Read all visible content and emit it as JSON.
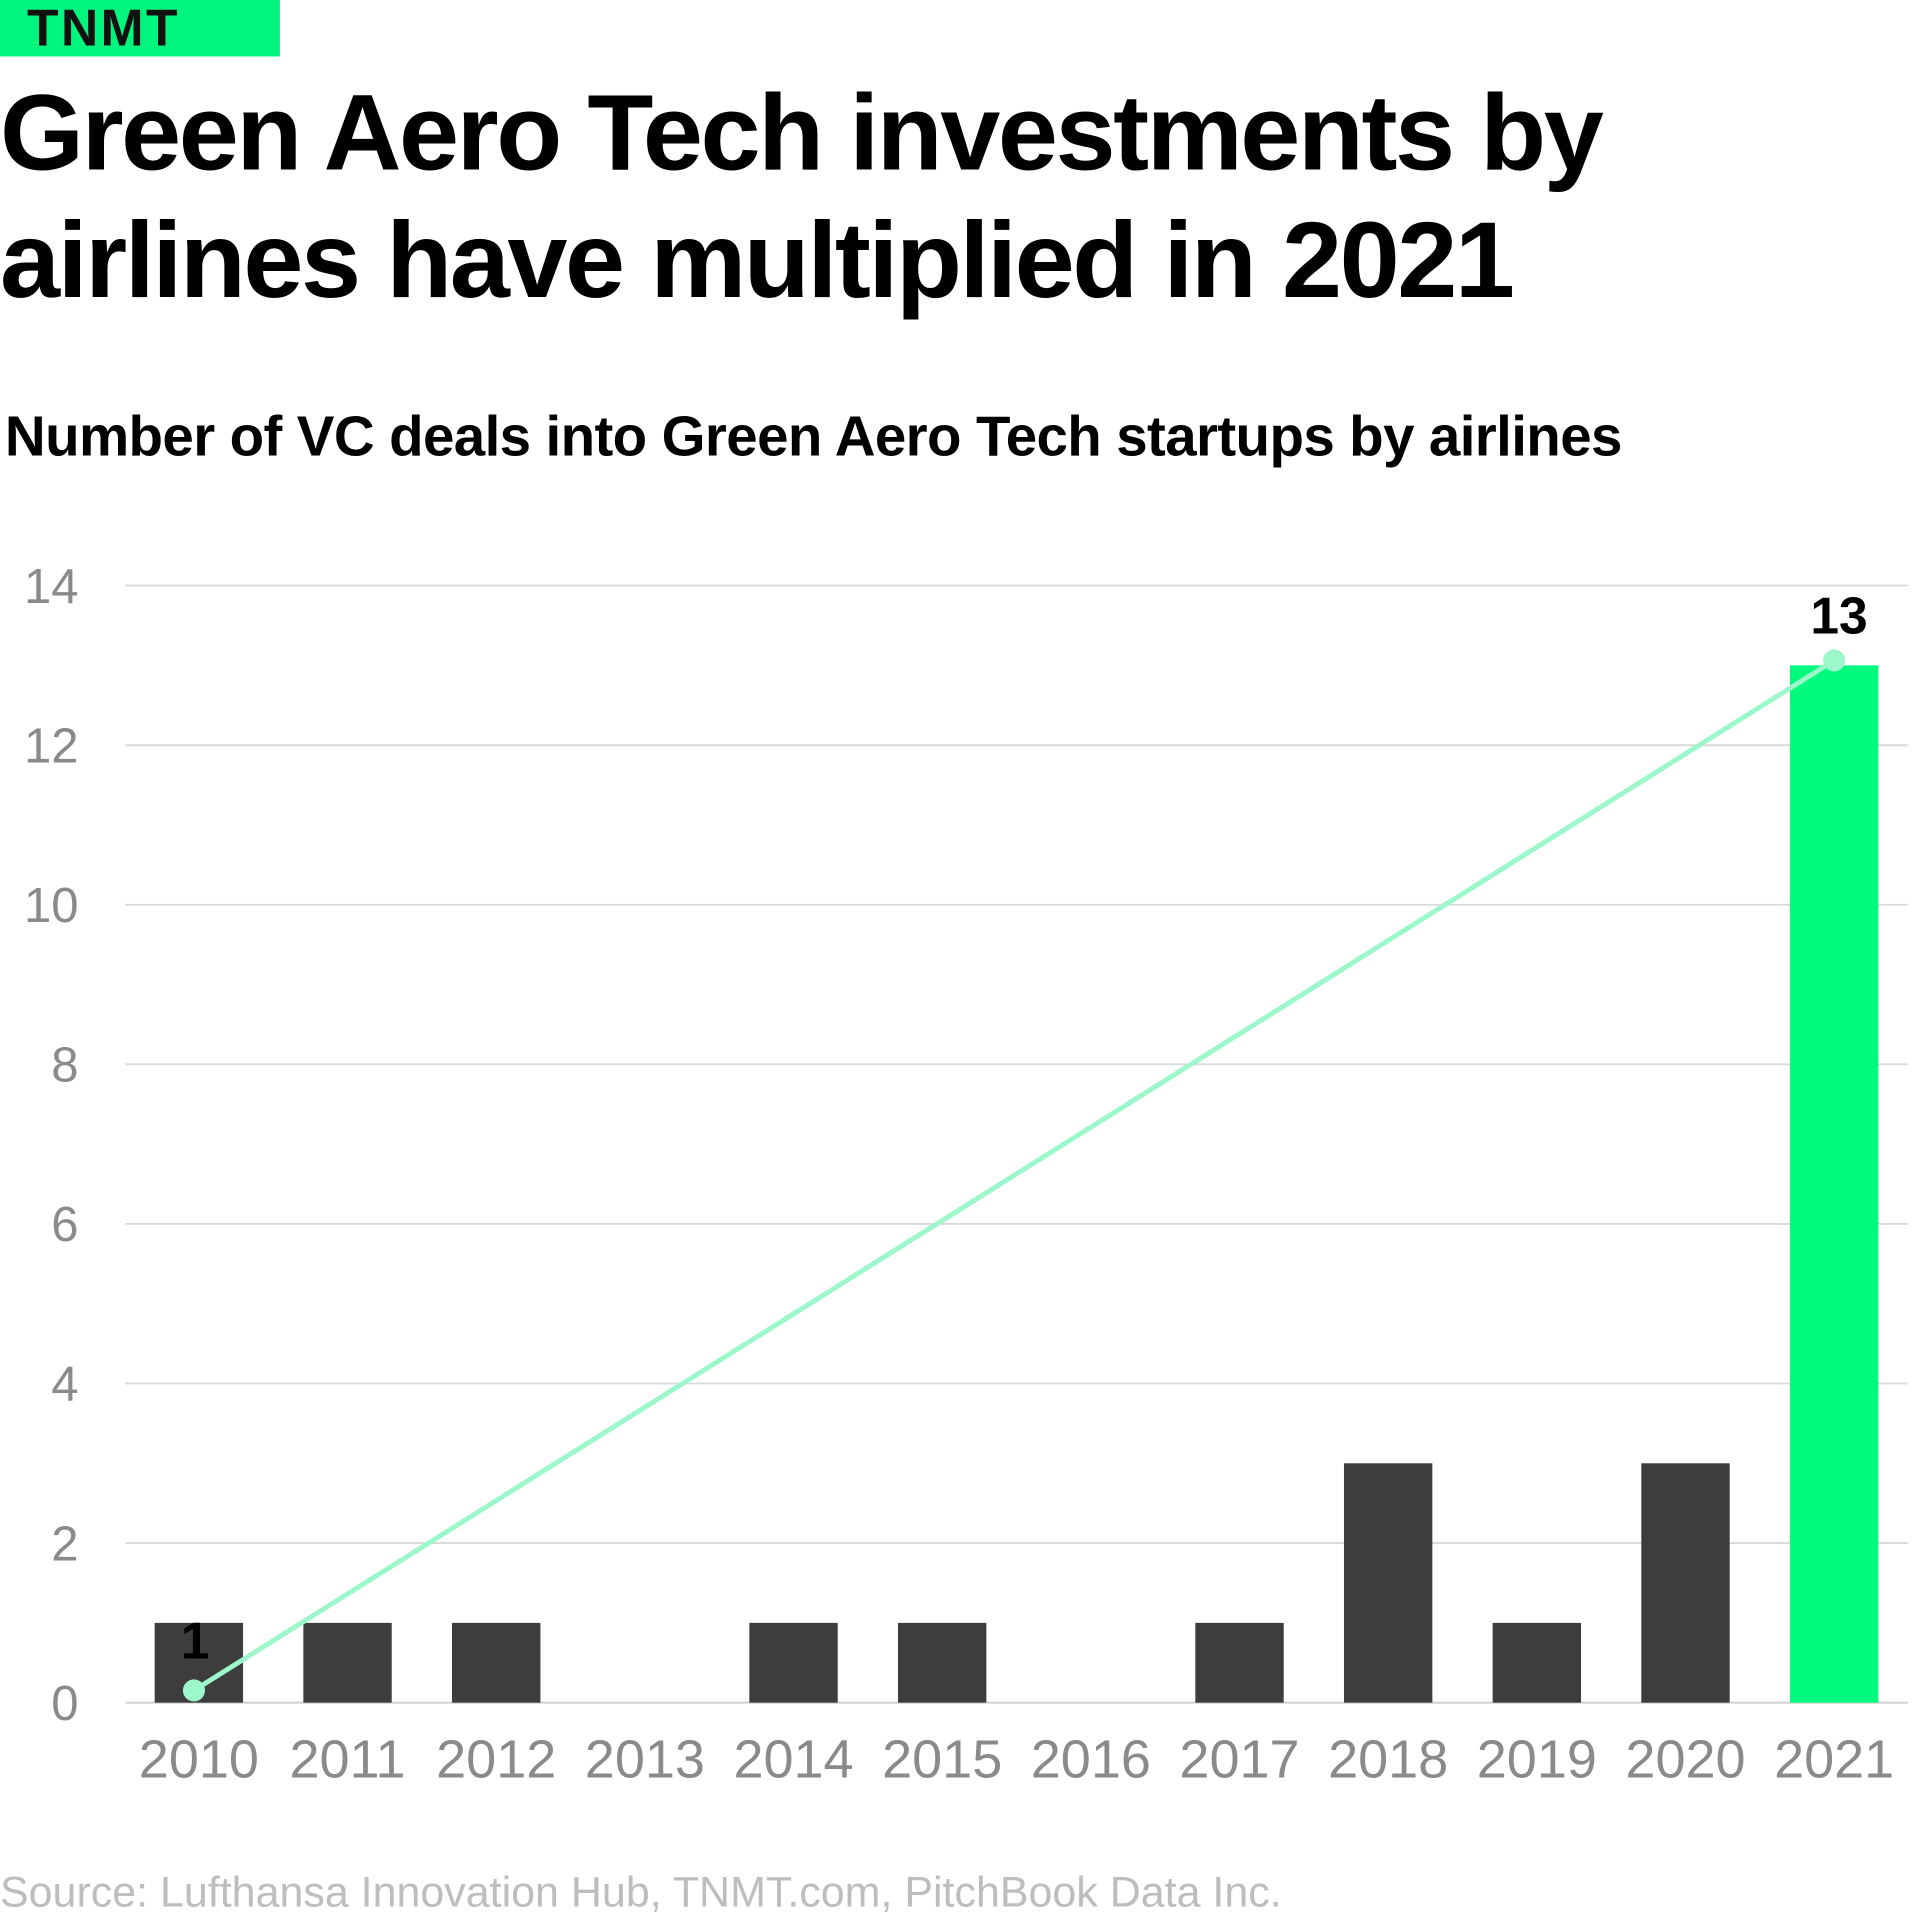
{
  "logo": "TNMT",
  "title": "Green Aero Tech investments by airlines have multiplied in 2021",
  "subtitle": "Number of VC deals into Green Aero Tech startups by airlines",
  "source": "Source: Lufthansa Innovation Hub, TNMT.com, PitchBook Data Inc.",
  "colors": {
    "bar": "#3d3d3d",
    "highlight": "#00fa7d",
    "trend": "#9cf7cb",
    "grid": "#d9d9d9",
    "tick": "#8a8a8a"
  },
  "chart_data": {
    "type": "bar",
    "categories": [
      "2010",
      "2011",
      "2012",
      "2013",
      "2014",
      "2015",
      "2016",
      "2017",
      "2018",
      "2019",
      "2020",
      "2021"
    ],
    "values": [
      1,
      1,
      1,
      0,
      1,
      1,
      0,
      1,
      3,
      1,
      3,
      13
    ],
    "highlight_category": "2021",
    "ylim": [
      0,
      14
    ],
    "yticks": [
      0,
      2,
      4,
      6,
      8,
      10,
      12,
      14
    ],
    "grid": true,
    "trend_line": {
      "from": {
        "x": "2010",
        "y": 1
      },
      "to": {
        "x": "2021",
        "y": 13
      }
    },
    "annotations": [
      {
        "x": "2010",
        "text": "1"
      },
      {
        "x": "2021",
        "text": "13"
      }
    ],
    "xlabel": "",
    "ylabel": ""
  }
}
